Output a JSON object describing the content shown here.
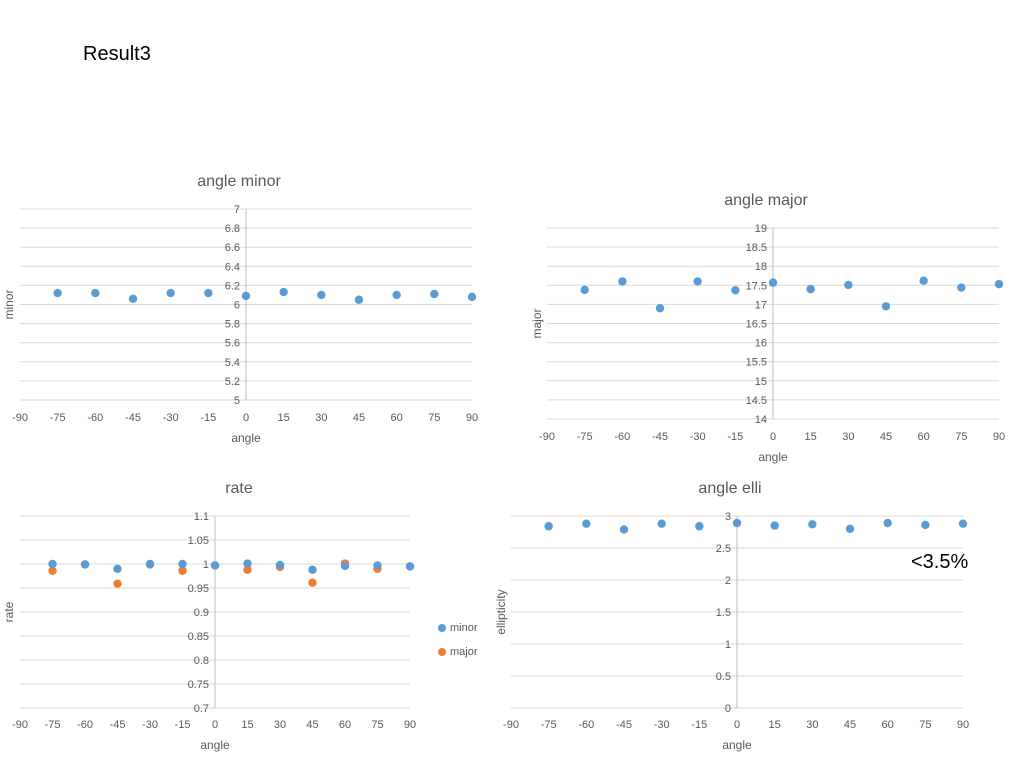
{
  "page": {
    "title": "Result3",
    "annotation": "<3.5%"
  },
  "colors": {
    "series1": "#5B9BD5",
    "series2": "#ED7D31",
    "grid": "#D9D9D9",
    "axis": "#BFBFBF",
    "text": "#595959"
  },
  "chart_data": [
    {
      "type": "scatter",
      "title": "angle minor",
      "xlabel": "angle",
      "ylabel": "minor",
      "xlim": [
        -90,
        90
      ],
      "ylim": [
        5,
        7
      ],
      "xticks": [
        "-90",
        "-75",
        "-60",
        "-45",
        "-30",
        "-15",
        "0",
        "15",
        "30",
        "45",
        "60",
        "75",
        "90"
      ],
      "yticks": [
        "5",
        "5.2",
        "5.4",
        "5.6",
        "5.8",
        "6",
        "6.2",
        "6.4",
        "6.6",
        "6.8",
        "7"
      ],
      "grid": true,
      "series": [
        {
          "x": [
            -75,
            -60,
            -45,
            -30,
            -15,
            0,
            15,
            30,
            45,
            60,
            75,
            90
          ],
          "y": [
            6.12,
            6.12,
            6.06,
            6.12,
            6.12,
            6.09,
            6.13,
            6.1,
            6.05,
            6.1,
            6.11,
            6.08
          ]
        }
      ]
    },
    {
      "type": "scatter",
      "title": "angle major",
      "xlabel": "angle",
      "ylabel": "major",
      "xlim": [
        -90,
        90
      ],
      "ylim": [
        14,
        19
      ],
      "xticks": [
        "-90",
        "-75",
        "-60",
        "-45",
        "-30",
        "-15",
        "0",
        "15",
        "30",
        "45",
        "60",
        "75",
        "90"
      ],
      "yticks": [
        "14",
        "14.5",
        "15",
        "15.5",
        "16",
        "16.5",
        "17",
        "17.5",
        "18",
        "18.5",
        "19"
      ],
      "grid": true,
      "series": [
        {
          "x": [
            -75,
            -60,
            -45,
            -30,
            -15,
            0,
            15,
            30,
            45,
            60,
            75,
            90
          ],
          "y": [
            17.38,
            17.6,
            16.9,
            17.6,
            17.37,
            17.57,
            17.4,
            17.51,
            16.95,
            17.62,
            17.44,
            17.53
          ]
        }
      ]
    },
    {
      "type": "scatter",
      "title": "rate",
      "xlabel": "angle",
      "ylabel": "rate",
      "xlim": [
        -90,
        90
      ],
      "ylim": [
        0.7,
        1.1
      ],
      "xticks": [
        "-90",
        "-75",
        "-60",
        "-45",
        "-30",
        "-15",
        "0",
        "15",
        "30",
        "45",
        "60",
        "75",
        "90"
      ],
      "yticks": [
        "0.7",
        "0.75",
        "0.8",
        "0.85",
        "0.9",
        "0.95",
        "1",
        "1.05",
        "1.1"
      ],
      "grid": true,
      "legend": "right",
      "series": [
        {
          "name": "minor",
          "x": [
            -75,
            -60,
            -45,
            -30,
            -15,
            0,
            15,
            30,
            45,
            60,
            75,
            90
          ],
          "y": [
            1.0,
            0.999,
            0.99,
            1.0,
            1.0,
            0.997,
            1.001,
            0.998,
            0.988,
            0.996,
            0.997,
            0.995
          ]
        },
        {
          "name": "major",
          "x": [
            -75,
            -60,
            -45,
            -30,
            -15,
            0,
            15,
            30,
            45,
            60,
            75,
            90
          ],
          "y": [
            0.986,
            0.999,
            0.959,
            0.999,
            0.986,
            0.997,
            0.988,
            0.994,
            0.961,
            1.001,
            0.99,
            0.995
          ]
        }
      ]
    },
    {
      "type": "scatter",
      "title": "angle elli",
      "xlabel": "angle",
      "ylabel": "ellipticity",
      "xlim": [
        -90,
        90
      ],
      "ylim": [
        0,
        3
      ],
      "xticks": [
        "-90",
        "-75",
        "-60",
        "-45",
        "-30",
        "-15",
        "0",
        "15",
        "30",
        "45",
        "60",
        "75",
        "90"
      ],
      "yticks": [
        "0",
        "0.5",
        "1",
        "1.5",
        "2",
        "2.5",
        "3"
      ],
      "grid": true,
      "series": [
        {
          "x": [
            -75,
            -60,
            -45,
            -30,
            -15,
            0,
            15,
            30,
            45,
            60,
            75,
            90
          ],
          "y": [
            2.84,
            2.88,
            2.79,
            2.88,
            2.84,
            2.89,
            2.85,
            2.87,
            2.8,
            2.89,
            2.86,
            2.88
          ]
        }
      ]
    }
  ]
}
